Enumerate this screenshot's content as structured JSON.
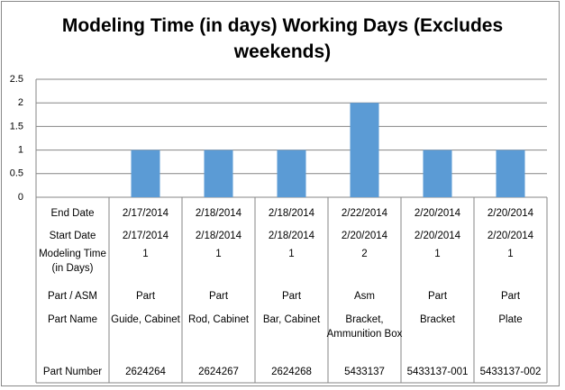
{
  "chart_data": {
    "type": "bar",
    "title": "Modeling Time (in days) Working Days (Excludes weekends)",
    "values": [
      1,
      1,
      1,
      2,
      1,
      1
    ],
    "color": "#5b9bd5",
    "ylim": [
      0,
      2.5
    ],
    "yticks": [
      0,
      0.5,
      1,
      1.5,
      2,
      2.5
    ],
    "grid": true,
    "data_table": [
      {
        "label": "End Date",
        "cells": [
          "2/17/2014",
          "2/18/2014",
          "2/18/2014",
          "2/22/2014",
          "2/20/2014",
          "2/20/2014"
        ]
      },
      {
        "label": "Start Date",
        "cells": [
          "2/17/2014",
          "2/18/2014",
          "2/18/2014",
          "2/20/2014",
          "2/20/2014",
          "2/20/2014"
        ]
      },
      {
        "label": "Modeling Time (in Days)"
      },
      {
        "label": "Part / ASM",
        "cells": [
          "Part",
          "Part",
          "Part",
          "Asm",
          "Part",
          "Part"
        ]
      },
      {
        "label": "Part Name",
        "cells": [
          "Guide, Cabinet",
          "Rod, Cabinet",
          "Bar, Cabinet",
          "Bracket, Ammunition Box",
          "Bracket",
          "Plate"
        ]
      },
      {
        "label": "Part Number",
        "cells": [
          "2624264",
          "2624267",
          "2624268",
          "5433137",
          "5433137-001",
          "5433137-002"
        ]
      }
    ]
  }
}
